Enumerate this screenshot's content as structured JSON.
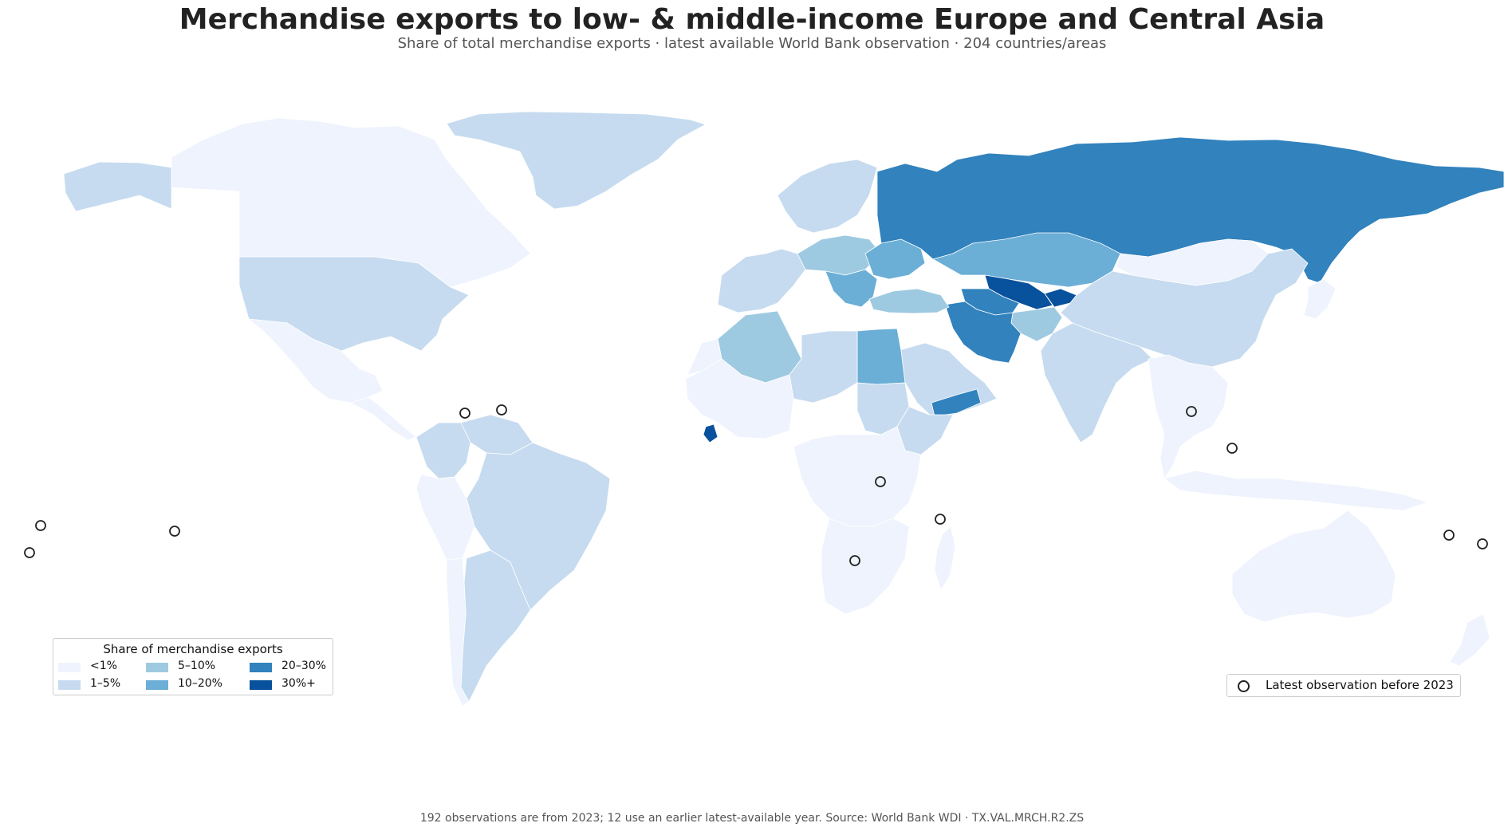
{
  "title": "Merchandise exports to low- & middle-income Europe and Central Asia",
  "subtitle": "Share of total merchandise exports · latest available World Bank observation · 204 countries/areas",
  "legend": {
    "title": "Share of merchandise exports",
    "items": [
      {
        "label": "<1%",
        "color": "#eef3fd"
      },
      {
        "label": "1–5%",
        "color": "#c6dbef"
      },
      {
        "label": "5–10%",
        "color": "#9ecae1"
      },
      {
        "label": "10–20%",
        "color": "#6baed6"
      },
      {
        "label": "20–30%",
        "color": "#3182bd"
      },
      {
        "label": "30%+",
        "color": "#08519c"
      }
    ]
  },
  "observation_legend": {
    "label": "Latest observation before 2023"
  },
  "footnote": "192 observations are from 2023; 12 use an earlier latest-available year. Source: World Bank WDI · TX.VAL.MRCH.R2.ZS",
  "map_data": {
    "indicator": "TX.VAL.MRCH.R2.ZS",
    "regions": [
      {
        "name": "Canada",
        "bin": "<1%"
      },
      {
        "name": "Alaska (United States)",
        "bin": "1–5%"
      },
      {
        "name": "Greenland",
        "bin": "1–5%"
      },
      {
        "name": "United States",
        "bin": "1–5%"
      },
      {
        "name": "Mexico",
        "bin": "<1%"
      },
      {
        "name": "Central America",
        "bin": "<1%"
      },
      {
        "name": "Colombia",
        "bin": "1–5%"
      },
      {
        "name": "Venezuela",
        "bin": "1–5%"
      },
      {
        "name": "Peru",
        "bin": "<1%"
      },
      {
        "name": "Brazil",
        "bin": "1–5%"
      },
      {
        "name": "Argentina",
        "bin": "1–5%"
      },
      {
        "name": "Chile",
        "bin": "<1%"
      },
      {
        "name": "Western Europe",
        "bin": "1–5%"
      },
      {
        "name": "Central Europe",
        "bin": "5–10%"
      },
      {
        "name": "Balkans",
        "bin": "10–20%"
      },
      {
        "name": "Ukraine",
        "bin": "10–20%"
      },
      {
        "name": "Scandinavia",
        "bin": "1–5%"
      },
      {
        "name": "Russia",
        "bin": "20–30%"
      },
      {
        "name": "Kazakhstan",
        "bin": "10–20%"
      },
      {
        "name": "Uzbekistan",
        "bin": "30%+"
      },
      {
        "name": "Kyrgyzstan",
        "bin": "30%+"
      },
      {
        "name": "Turkmenistan",
        "bin": "20–30%"
      },
      {
        "name": "Afghanistan",
        "bin": "5–10%"
      },
      {
        "name": "Iran",
        "bin": "20–30%"
      },
      {
        "name": "Turkey",
        "bin": "5–10%"
      },
      {
        "name": "Mongolia",
        "bin": "<1%"
      },
      {
        "name": "China",
        "bin": "1–5%"
      },
      {
        "name": "India",
        "bin": "1–5%"
      },
      {
        "name": "Southeast Asia",
        "bin": "<1%"
      },
      {
        "name": "Indonesia",
        "bin": "<1%"
      },
      {
        "name": "Japan",
        "bin": "<1%"
      },
      {
        "name": "Australia",
        "bin": "<1%"
      },
      {
        "name": "New Zealand",
        "bin": "<1%"
      },
      {
        "name": "Arabian Peninsula",
        "bin": "1–5%"
      },
      {
        "name": "Yemen",
        "bin": "20–30%"
      },
      {
        "name": "Egypt",
        "bin": "10–20%"
      },
      {
        "name": "Algeria",
        "bin": "5–10%"
      },
      {
        "name": "Morocco",
        "bin": "<1%"
      },
      {
        "name": "Sahel",
        "bin": "1–5%"
      },
      {
        "name": "West Africa",
        "bin": "<1%"
      },
      {
        "name": "Sierra Leone",
        "bin": "30%+"
      },
      {
        "name": "Sudan",
        "bin": "1–5%"
      },
      {
        "name": "Ethiopia",
        "bin": "1–5%"
      },
      {
        "name": "Central Africa",
        "bin": "<1%"
      },
      {
        "name": "Southern Africa",
        "bin": "<1%"
      },
      {
        "name": "Madagascar",
        "bin": "<1%"
      }
    ],
    "earlier_observation_markers": 12
  }
}
